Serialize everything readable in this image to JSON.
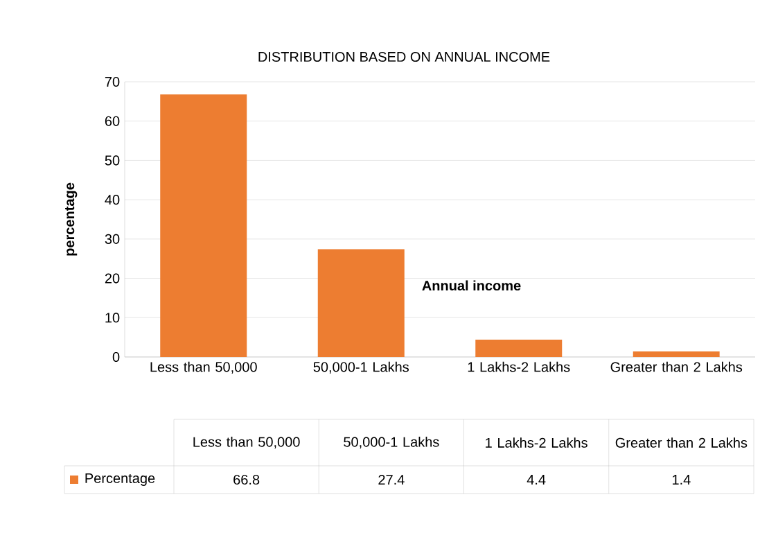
{
  "chart_data": {
    "type": "bar",
    "title": "DISTRIBUTION BASED ON ANNUAL INCOME",
    "xlabel": "Annual income",
    "ylabel": "percentage",
    "categories": [
      "Less than 50,000",
      "50,000-1 Lakhs",
      "1 Lakhs-2 Lakhs",
      "Greater than 2 Lakhs"
    ],
    "series": [
      {
        "name": "Percentage",
        "color": "#ed7d31",
        "values": [
          66.8,
          27.4,
          4.4,
          1.4
        ]
      }
    ],
    "ylim": [
      0,
      70
    ],
    "yticks": [
      0,
      10,
      20,
      30,
      40,
      50,
      60,
      70
    ],
    "grid": "y",
    "legend": "bottom",
    "data_labels": true
  }
}
